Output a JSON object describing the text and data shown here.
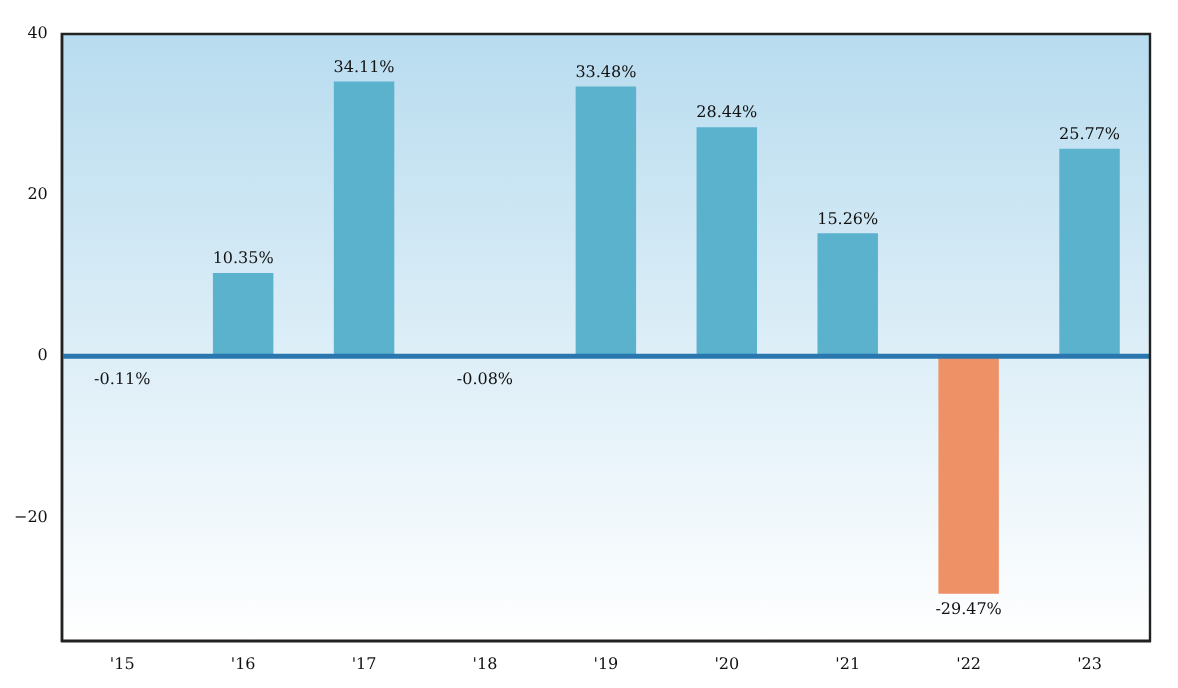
{
  "chart_data": {
    "type": "bar",
    "categories": [
      "'15",
      "'16",
      "'17",
      "'18",
      "'19",
      "'20",
      "'21",
      "'22",
      "'23"
    ],
    "values": [
      -0.11,
      10.35,
      34.11,
      -0.08,
      33.48,
      28.44,
      15.26,
      -29.47,
      25.77
    ],
    "colors": [
      "#5ab2cc",
      "#5ab2cc",
      "#5ab2cc",
      "#5ab2cc",
      "#5ab2cc",
      "#5ab2cc",
      "#5ab2cc",
      "#ee9166",
      "#5ab2cc"
    ],
    "value_labels": [
      "-0.11%",
      "10.35%",
      "34.11%",
      "-0.08%",
      "33.48%",
      "28.44%",
      "15.26%",
      "-29.47%",
      "25.77%"
    ],
    "ylim": [
      -35.3,
      40
    ],
    "yticks": [
      {
        "value": -20,
        "label": "−20"
      },
      0,
      20,
      40
    ],
    "ref_lines": [
      {
        "axis": "y",
        "value": 0,
        "color": "#2a77b0"
      }
    ],
    "grid": false,
    "legend": false
  }
}
